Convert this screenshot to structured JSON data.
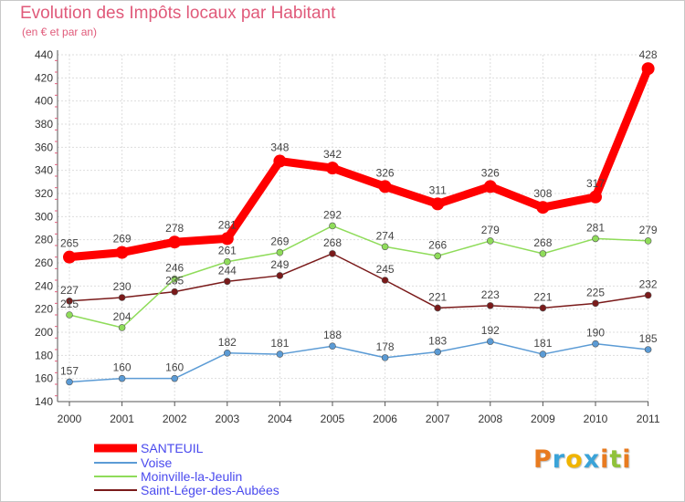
{
  "chart_data": {
    "type": "line",
    "title": "Evolution des Impôts locaux par Habitant",
    "subtitle": "(en € et par an)",
    "categories": [
      "2000",
      "2001",
      "2002",
      "2003",
      "2004",
      "2005",
      "2006",
      "2007",
      "2008",
      "2009",
      "2010",
      "2011"
    ],
    "ylim": [
      140,
      440
    ],
    "yticks": [
      140,
      160,
      180,
      200,
      220,
      240,
      260,
      280,
      300,
      320,
      340,
      360,
      380,
      400,
      420,
      440
    ],
    "ytick_labels": [
      "140",
      "160",
      "180",
      "200",
      "220",
      "240",
      "260",
      "280",
      "300",
      "320",
      "340",
      "360",
      "380",
      "400",
      "420",
      "440"
    ],
    "grid": true,
    "legend_position": "bottom-left",
    "series": [
      {
        "name": "SANTEUIL",
        "color": "#ff0000",
        "values": [
          265,
          269,
          278,
          281,
          348,
          342,
          326,
          311,
          326,
          308,
          317,
          428
        ],
        "labels": [
          "265",
          "269",
          "278",
          "281",
          "348",
          "342",
          "326",
          "311",
          "326",
          "308",
          "317",
          "428"
        ]
      },
      {
        "name": "Voise",
        "color": "#5b9bd5",
        "values": [
          157,
          160,
          160,
          182,
          181,
          188,
          178,
          183,
          192,
          181,
          190,
          185
        ],
        "labels": [
          "157",
          "160",
          "160",
          "182",
          "181",
          "188",
          "178",
          "183",
          "192",
          "181",
          "190",
          "185"
        ]
      },
      {
        "name": "Moinville-la-Jeulin",
        "color": "#8fdc5a",
        "values": [
          215,
          204,
          246,
          261,
          269,
          292,
          274,
          266,
          279,
          268,
          281,
          279
        ],
        "labels": [
          "215",
          "204",
          "246",
          "261",
          "269",
          "292",
          "274",
          "266",
          "279",
          "268",
          "281",
          "279"
        ]
      },
      {
        "name": "Saint-Léger-des-Aubées",
        "color": "#7a1a1a",
        "values": [
          227,
          230,
          235,
          244,
          249,
          268,
          245,
          221,
          223,
          221,
          225,
          232
        ],
        "labels": [
          "227",
          "230",
          "235",
          "244",
          "249",
          "268",
          "245",
          "221",
          "223",
          "221",
          "225",
          "232"
        ]
      }
    ]
  },
  "brand": {
    "letters": [
      "P",
      "r",
      "o",
      "x",
      "i",
      "t",
      "i"
    ],
    "colors": [
      "#e87b20",
      "#3aa3d8",
      "#f0b400",
      "#3aa3d8",
      "#e87b20",
      "#8fc23a",
      "#e87b20"
    ]
  }
}
